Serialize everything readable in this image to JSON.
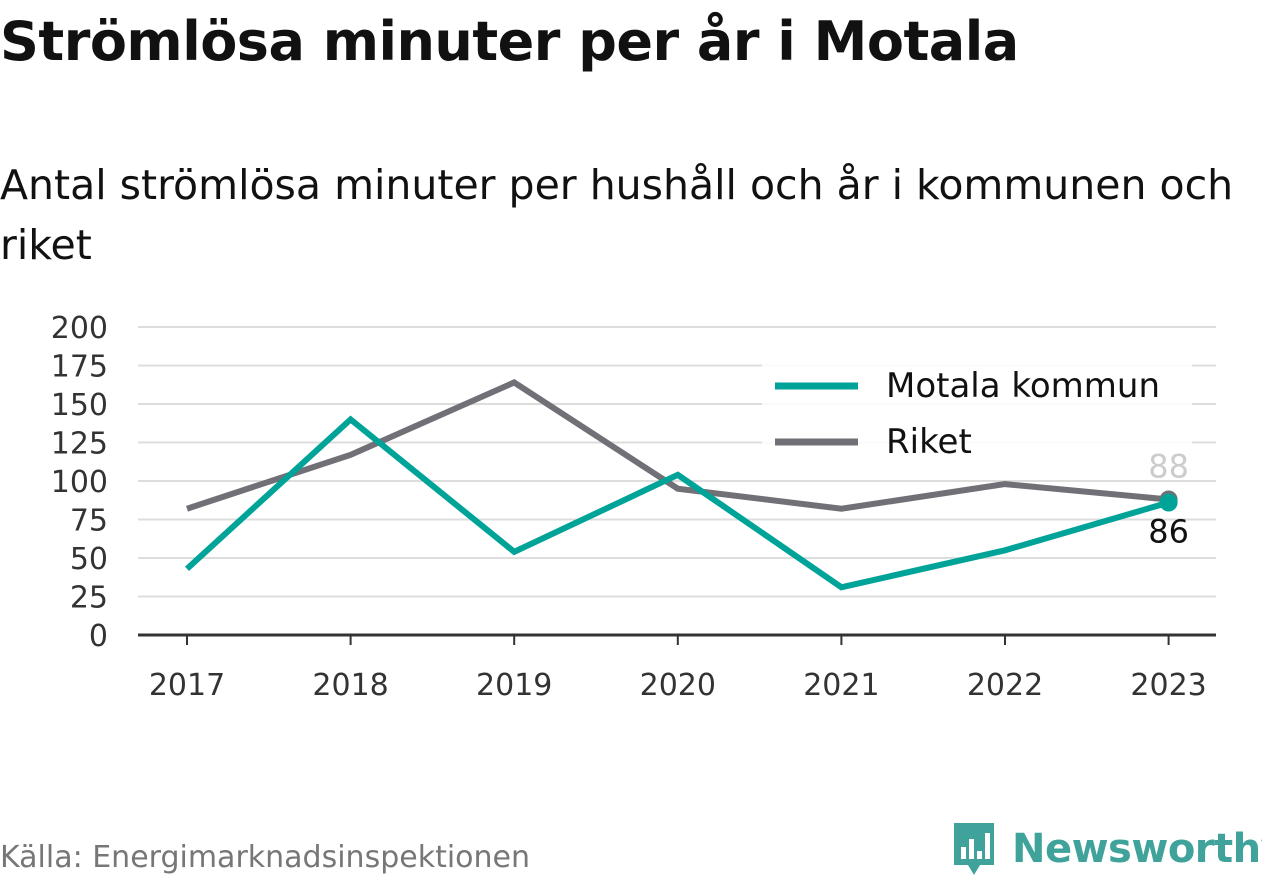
{
  "title": "Strömlösa minuter per år i Motala",
  "subtitle": "Antal strömlösa minuter per hushåll och år i kommunen och riket",
  "source": "Källa: Energimarknadsinspektionen",
  "brand": "Newsworthy",
  "colors": {
    "motala": "#00a398",
    "riket": "#707076",
    "grid": "#dddddd",
    "axis": "#333333",
    "brand": "#3fa39b"
  },
  "chart_data": {
    "type": "line",
    "x": [
      "2017",
      "2018",
      "2019",
      "2020",
      "2021",
      "2022",
      "2023"
    ],
    "yticks": [
      "0",
      "25",
      "50",
      "75",
      "100",
      "125",
      "150",
      "175",
      "200"
    ],
    "ylim": [
      0,
      200
    ],
    "grid": true,
    "legend_position": "top-right",
    "series": [
      {
        "name": "Motala kommun",
        "color": "#00a398",
        "values": [
          43,
          140,
          54,
          104,
          31,
          55,
          86
        ],
        "end_label": "86"
      },
      {
        "name": "Riket",
        "color": "#707076",
        "values": [
          82,
          117,
          164,
          95,
          82,
          98,
          88
        ],
        "end_label": "88"
      }
    ]
  }
}
